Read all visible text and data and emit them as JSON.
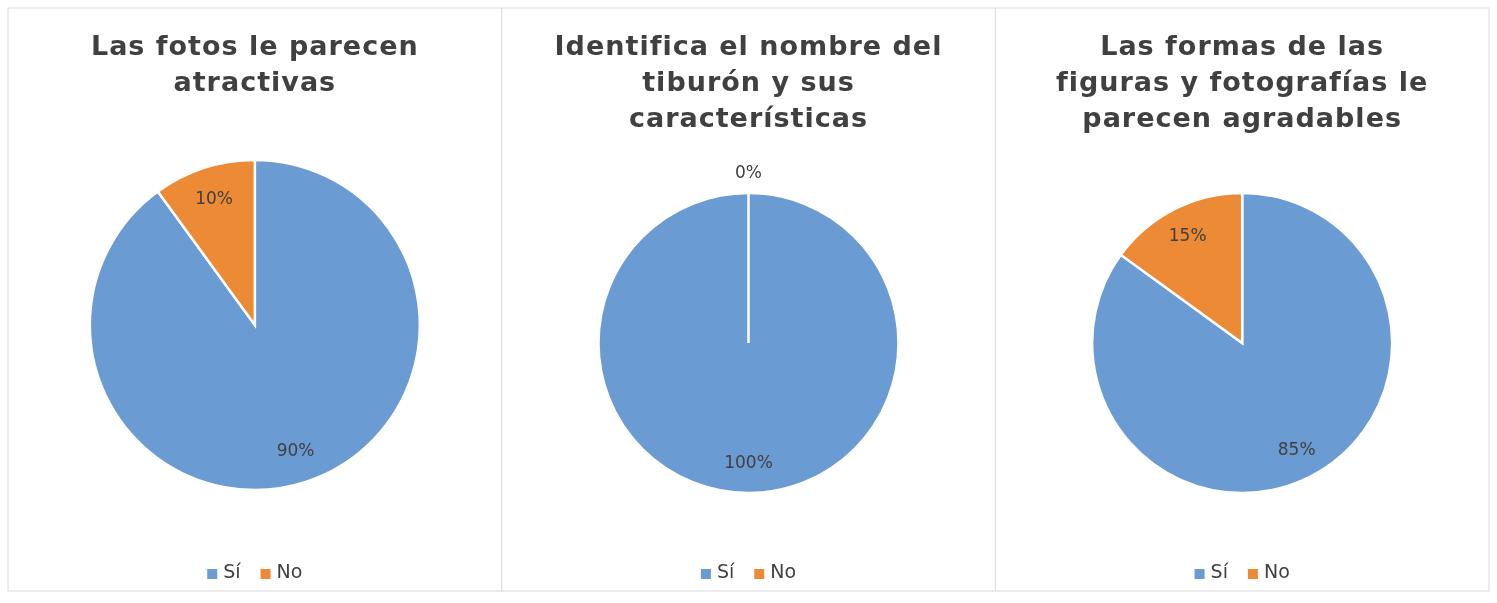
{
  "chart_data": [
    {
      "type": "pie",
      "title": "Las fotos le parecen atractivas",
      "categories": [
        "Sí",
        "No"
      ],
      "values": [
        90,
        10
      ],
      "colors": [
        "#6a9bd2",
        "#ec8a36"
      ],
      "value_labels": [
        "90%",
        "10%"
      ],
      "legend": "bottom"
    },
    {
      "type": "pie",
      "title": "Identifica el nombre del tiburón y sus características",
      "categories": [
        "Sí",
        "No"
      ],
      "values": [
        100,
        0
      ],
      "colors": [
        "#6a9bd2",
        "#ec8a36"
      ],
      "value_labels": [
        "100%",
        "0%"
      ],
      "legend": "bottom"
    },
    {
      "type": "pie",
      "title": "Las formas de las figuras y fotografías le parecen agradables",
      "categories": [
        "Sí",
        "No"
      ],
      "values": [
        85,
        15
      ],
      "colors": [
        "#6a9bd2",
        "#ec8a36"
      ],
      "value_labels": [
        "85%",
        "15%"
      ],
      "legend": "bottom"
    }
  ]
}
